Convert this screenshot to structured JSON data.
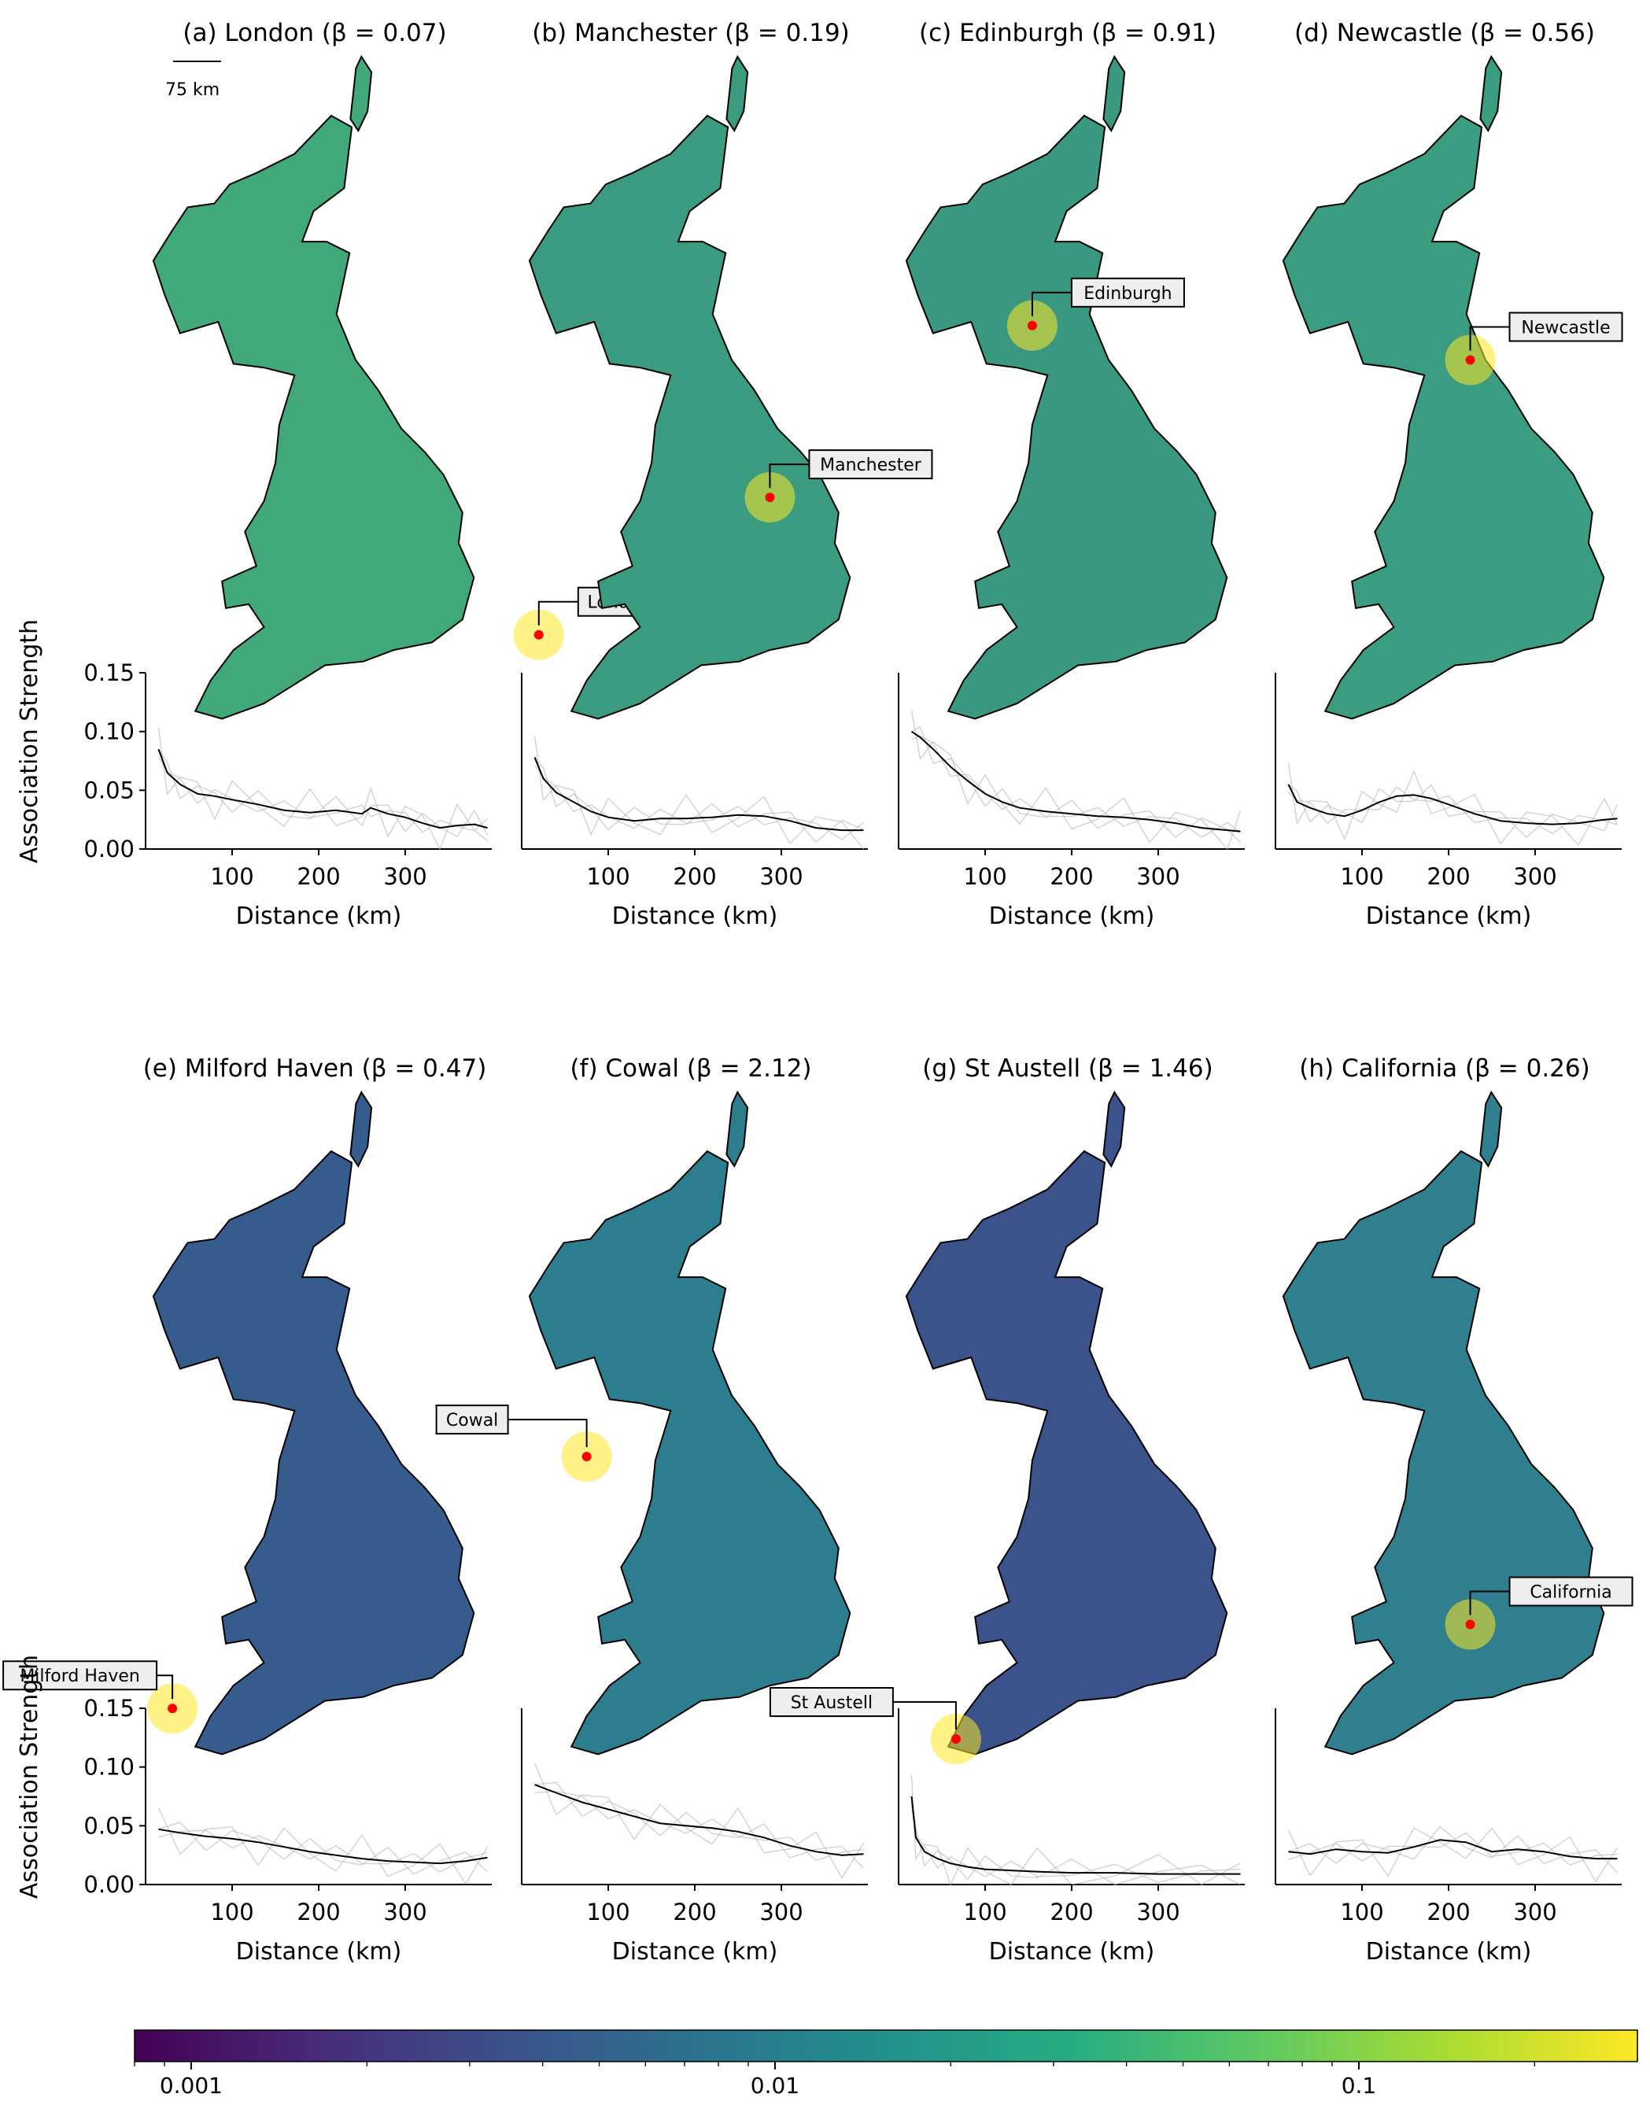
{
  "figure": {
    "scalebar_label": "75 km",
    "colorbar": {
      "scale": "log",
      "range": [
        0.0008,
        0.3
      ],
      "colormap": "viridis",
      "tick_labels": [
        "0.001",
        "0.01",
        "0.1"
      ],
      "tick_values": [
        0.001,
        0.01,
        0.1
      ]
    }
  },
  "chart_data": [
    {
      "panel": "a",
      "title": "(a) London (β = 0.07)",
      "place": "London",
      "beta": 0.07,
      "type": "line",
      "map_type": "hexbin choropleth",
      "map_color": "#41a87a",
      "xlabel": "Distance (km)",
      "ylabel": "Association Strength",
      "xlim": [
        0,
        400
      ],
      "ylim": [
        0,
        0.15
      ],
      "xticks": [
        "100",
        "200",
        "300"
      ],
      "yticks": [
        "0.00",
        "0.05",
        "0.10",
        "0.15"
      ],
      "series": [
        {
          "x": [
            15,
            25,
            40,
            60,
            80,
            100,
            130,
            160,
            190,
            220,
            250,
            260,
            280,
            300,
            320,
            340,
            360,
            380,
            395
          ],
          "y": [
            0.085,
            0.065,
            0.055,
            0.047,
            0.045,
            0.042,
            0.038,
            0.033,
            0.031,
            0.033,
            0.03,
            0.035,
            0.03,
            0.027,
            0.022,
            0.018,
            0.02,
            0.021,
            0.018
          ]
        }
      ]
    },
    {
      "panel": "b",
      "title": "(b) Manchester (β = 0.19)",
      "place": "Manchester",
      "beta": 0.19,
      "type": "line",
      "map_type": "hexbin choropleth",
      "map_color": "#3b9b80",
      "xlabel": "Distance (km)",
      "ylabel": "",
      "xlim": [
        0,
        400
      ],
      "ylim": [
        0,
        0.15
      ],
      "xticks": [
        "100",
        "200",
        "300"
      ],
      "yticks": [],
      "series": [
        {
          "x": [
            15,
            25,
            40,
            60,
            80,
            100,
            130,
            160,
            190,
            220,
            250,
            280,
            310,
            340,
            370,
            395
          ],
          "y": [
            0.078,
            0.06,
            0.048,
            0.04,
            0.032,
            0.027,
            0.024,
            0.026,
            0.026,
            0.027,
            0.029,
            0.028,
            0.024,
            0.018,
            0.016,
            0.016
          ]
        }
      ]
    },
    {
      "panel": "c",
      "title": "(c) Edinburgh (β = 0.91)",
      "place": "Edinburgh",
      "beta": 0.91,
      "type": "line",
      "map_type": "hexbin choropleth",
      "map_color": "#3a9880",
      "xlabel": "Distance (km)",
      "ylabel": "",
      "xlim": [
        0,
        400
      ],
      "ylim": [
        0,
        0.15
      ],
      "xticks": [
        "100",
        "200",
        "300"
      ],
      "yticks": [],
      "series": [
        {
          "x": [
            15,
            25,
            40,
            60,
            80,
            100,
            120,
            140,
            170,
            200,
            230,
            260,
            290,
            320,
            350,
            380,
            395
          ],
          "y": [
            0.1,
            0.095,
            0.085,
            0.07,
            0.058,
            0.047,
            0.04,
            0.035,
            0.032,
            0.03,
            0.028,
            0.027,
            0.025,
            0.022,
            0.018,
            0.016,
            0.015
          ]
        }
      ]
    },
    {
      "panel": "d",
      "title": "(d) Newcastle (β = 0.56)",
      "place": "Newcastle",
      "beta": 0.56,
      "type": "line",
      "map_type": "hexbin choropleth",
      "map_color": "#3a9c80",
      "xlabel": "Distance (km)",
      "ylabel": "",
      "xlim": [
        0,
        400
      ],
      "ylim": [
        0,
        0.15
      ],
      "xticks": [
        "100",
        "200",
        "300"
      ],
      "yticks": [],
      "series": [
        {
          "x": [
            15,
            25,
            40,
            60,
            80,
            100,
            120,
            140,
            160,
            180,
            200,
            230,
            260,
            290,
            320,
            350,
            380,
            395
          ],
          "y": [
            0.055,
            0.04,
            0.035,
            0.03,
            0.028,
            0.033,
            0.04,
            0.045,
            0.046,
            0.043,
            0.038,
            0.03,
            0.024,
            0.022,
            0.021,
            0.022,
            0.025,
            0.026
          ]
        }
      ]
    },
    {
      "panel": "e",
      "title": "(e) Milford Haven (β = 0.47)",
      "place": "Milford Haven",
      "beta": 0.47,
      "type": "line",
      "map_type": "hexbin choropleth",
      "map_color": "#365c8d",
      "xlabel": "Distance (km)",
      "ylabel": "Association Strength",
      "xlim": [
        0,
        400
      ],
      "ylim": [
        0,
        0.15
      ],
      "xticks": [
        "100",
        "200",
        "300"
      ],
      "yticks": [
        "0.00",
        "0.05",
        "0.10",
        "0.15"
      ],
      "series": [
        {
          "x": [
            15,
            40,
            70,
            100,
            130,
            160,
            190,
            220,
            250,
            280,
            310,
            340,
            370,
            395
          ],
          "y": [
            0.047,
            0.044,
            0.041,
            0.039,
            0.036,
            0.032,
            0.028,
            0.025,
            0.022,
            0.02,
            0.019,
            0.018,
            0.02,
            0.023
          ]
        }
      ]
    },
    {
      "panel": "f",
      "title": "(f) Cowal (β = 2.12)",
      "place": "Cowal",
      "beta": 2.12,
      "type": "line",
      "map_type": "hexbin choropleth",
      "map_color": "#2c7e8e",
      "xlabel": "Distance (km)",
      "ylabel": "",
      "xlim": [
        0,
        400
      ],
      "ylim": [
        0,
        0.15
      ],
      "xticks": [
        "100",
        "200",
        "300"
      ],
      "yticks": [],
      "series": [
        {
          "x": [
            15,
            40,
            70,
            100,
            130,
            160,
            190,
            220,
            250,
            280,
            310,
            340,
            370,
            395
          ],
          "y": [
            0.085,
            0.078,
            0.07,
            0.064,
            0.058,
            0.052,
            0.05,
            0.048,
            0.045,
            0.04,
            0.033,
            0.028,
            0.025,
            0.026
          ]
        }
      ]
    },
    {
      "panel": "g",
      "title": "(g) St Austell (β = 1.46)",
      "place": "St Austell",
      "beta": 1.46,
      "type": "line",
      "map_type": "hexbin choropleth",
      "map_color": "#3b528b",
      "xlabel": "Distance (km)",
      "ylabel": "",
      "xlim": [
        0,
        400
      ],
      "ylim": [
        0,
        0.15
      ],
      "xticks": [
        "100",
        "200",
        "300"
      ],
      "yticks": [],
      "series": [
        {
          "x": [
            15,
            20,
            30,
            45,
            60,
            80,
            100,
            130,
            160,
            200,
            250,
            300,
            350,
            395
          ],
          "y": [
            0.075,
            0.04,
            0.028,
            0.022,
            0.018,
            0.015,
            0.013,
            0.012,
            0.011,
            0.01,
            0.01,
            0.009,
            0.009,
            0.009
          ]
        }
      ]
    },
    {
      "panel": "h",
      "title": "(h) California (β = 0.26)",
      "place": "California",
      "beta": 0.26,
      "type": "line",
      "map_type": "hexbin choropleth",
      "map_color": "#2f7f8e",
      "xlabel": "Distance (km)",
      "ylabel": "",
      "xlim": [
        0,
        400
      ],
      "ylim": [
        0,
        0.15
      ],
      "xticks": [
        "100",
        "200",
        "300"
      ],
      "yticks": [],
      "series": [
        {
          "x": [
            15,
            40,
            70,
            100,
            130,
            160,
            190,
            220,
            250,
            280,
            310,
            340,
            370,
            395
          ],
          "y": [
            0.028,
            0.026,
            0.03,
            0.028,
            0.027,
            0.032,
            0.038,
            0.036,
            0.028,
            0.03,
            0.028,
            0.024,
            0.022,
            0.022
          ]
        }
      ]
    }
  ]
}
